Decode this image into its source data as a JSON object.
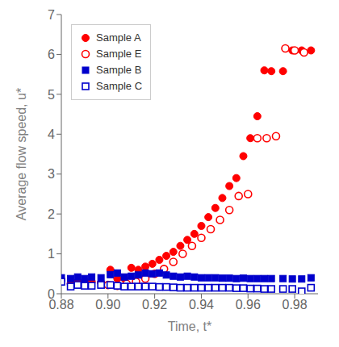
{
  "chart_data": {
    "type": "scatter",
    "xlabel": "Time, t*",
    "ylabel": "Average flow speed, u*",
    "xlim": [
      0.88,
      0.99
    ],
    "ylim": [
      0,
      7
    ],
    "xticks": [
      0.88,
      {
        "value": 0.9,
        "label": "0.90"
      },
      0.92,
      0.94,
      0.96,
      0.98
    ],
    "yticks": [
      0,
      1,
      2,
      3,
      4,
      5,
      6,
      7
    ],
    "grid": false,
    "legend": "upper left",
    "series": [
      {
        "name": "Sample A",
        "color": "#FF0000",
        "marker": "circle",
        "x": [
          0.88,
          0.884,
          0.887,
          0.89,
          0.893,
          0.897,
          0.901,
          0.904,
          0.907,
          0.91,
          0.913,
          0.916,
          0.919,
          0.922,
          0.925,
          0.928,
          0.931,
          0.934,
          0.937,
          0.94,
          0.943,
          0.946,
          0.949,
          0.952,
          0.955,
          0.958,
          0.961,
          0.964,
          0.967,
          0.97,
          0.975,
          0.979,
          0.983,
          0.987
        ],
        "values": [
          0.35,
          0.25,
          0.3,
          0.32,
          0.3,
          0.28,
          0.6,
          0.38,
          0.38,
          0.65,
          0.6,
          0.68,
          0.75,
          0.85,
          0.95,
          1.05,
          1.2,
          1.35,
          1.5,
          1.7,
          1.92,
          2.15,
          2.4,
          2.7,
          2.9,
          3.45,
          3.9,
          4.45,
          5.6,
          5.58,
          5.58,
          6.1,
          6.1,
          6.1
        ]
      },
      {
        "name": "Sample E",
        "color": "#FF0000",
        "marker": "circle-open",
        "x": [
          0.9,
          0.904,
          0.908,
          0.912,
          0.916,
          0.92,
          0.924,
          0.928,
          0.932,
          0.936,
          0.94,
          0.944,
          0.948,
          0.952,
          0.956,
          0.96,
          0.964,
          0.968,
          0.972,
          0.976,
          0.98,
          0.984
        ],
        "values": [
          0.22,
          0.2,
          0.25,
          0.3,
          0.38,
          0.5,
          0.62,
          0.8,
          1.0,
          1.2,
          1.4,
          1.62,
          1.85,
          2.1,
          2.45,
          2.5,
          3.9,
          3.9,
          3.95,
          6.15,
          6.1,
          6.05
        ]
      },
      {
        "name": "Sample B",
        "color": "#0000CC",
        "marker": "square",
        "x": [
          0.88,
          0.884,
          0.887,
          0.89,
          0.893,
          0.897,
          0.901,
          0.904,
          0.907,
          0.91,
          0.913,
          0.916,
          0.919,
          0.922,
          0.925,
          0.928,
          0.931,
          0.934,
          0.937,
          0.94,
          0.943,
          0.946,
          0.949,
          0.952,
          0.955,
          0.958,
          0.961,
          0.964,
          0.967,
          0.97,
          0.975,
          0.979,
          0.983,
          0.987
        ],
        "values": [
          0.4,
          0.38,
          0.42,
          0.38,
          0.42,
          0.4,
          0.48,
          0.52,
          0.42,
          0.44,
          0.47,
          0.52,
          0.5,
          0.52,
          0.47,
          0.44,
          0.42,
          0.44,
          0.42,
          0.4,
          0.4,
          0.4,
          0.39,
          0.39,
          0.38,
          0.39,
          0.38,
          0.38,
          0.38,
          0.38,
          0.38,
          0.37,
          0.37,
          0.4
        ]
      },
      {
        "name": "Sample C",
        "color": "#0000CC",
        "marker": "square-open",
        "x": [
          0.88,
          0.884,
          0.887,
          0.89,
          0.893,
          0.897,
          0.901,
          0.904,
          0.907,
          0.91,
          0.913,
          0.916,
          0.919,
          0.922,
          0.925,
          0.928,
          0.931,
          0.934,
          0.937,
          0.94,
          0.943,
          0.946,
          0.949,
          0.952,
          0.955,
          0.958,
          0.961,
          0.964,
          0.967,
          0.97,
          0.975,
          0.979,
          0.983,
          0.987
        ],
        "values": [
          0.3,
          0.18,
          0.22,
          0.2,
          0.2,
          0.22,
          0.22,
          0.2,
          0.18,
          0.18,
          0.18,
          0.18,
          0.18,
          0.17,
          0.17,
          0.16,
          0.15,
          0.15,
          0.15,
          0.15,
          0.15,
          0.15,
          0.15,
          0.15,
          0.14,
          0.14,
          0.13,
          0.13,
          0.12,
          0.12,
          0.12,
          0.12,
          0.06,
          0.15
        ]
      }
    ]
  }
}
